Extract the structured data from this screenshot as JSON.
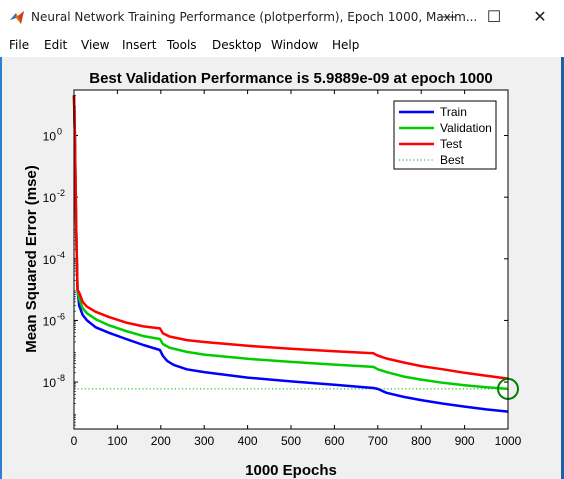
{
  "window": {
    "title": "Neural Network Training Performance (plotperform), Epoch 1000, Maxim...",
    "minimize_glyph": "—",
    "maximize_glyph": "☐",
    "close_glyph": "✕"
  },
  "menu": {
    "items": [
      "File",
      "Edit",
      "View",
      "Insert",
      "Tools",
      "Desktop",
      "Window",
      "Help"
    ],
    "dock_glyph": "↘"
  },
  "colors": {
    "train": "#0000ff",
    "validation": "#00cc00",
    "test": "#ff0000",
    "best": "#00aa00",
    "goal_circle": "#008000"
  },
  "chart_data": {
    "type": "line",
    "title": "Best Validation Performance is 5.9889e-09 at epoch 1000",
    "xlabel": "1000 Epochs",
    "ylabel": "Mean Squared Error  (mse)",
    "xlim": [
      0,
      1000
    ],
    "ylim": [
      3e-10,
      30
    ],
    "yscale": "log",
    "xticks": [
      0,
      100,
      200,
      300,
      400,
      500,
      600,
      700,
      800,
      900,
      1000
    ],
    "yticks": [
      {
        "value": 1,
        "base": "10",
        "exp": "0"
      },
      {
        "value": 0.01,
        "base": "10",
        "exp": "-2"
      },
      {
        "value": 0.0001,
        "base": "10",
        "exp": "-4"
      },
      {
        "value": 1e-06,
        "base": "10",
        "exp": "-6"
      },
      {
        "value": 1e-08,
        "base": "10",
        "exp": "-8"
      }
    ],
    "legend_position": "top-right",
    "series": [
      {
        "name": "Train",
        "key": "train",
        "style": "solid",
        "x": [
          0,
          1,
          2,
          3,
          5,
          8,
          12,
          20,
          30,
          50,
          80,
          120,
          160,
          198,
          205,
          215,
          230,
          260,
          300,
          400,
          500,
          600,
          690,
          700,
          720,
          760,
          800,
          850,
          900,
          950,
          1000
        ],
        "y": [
          20,
          5,
          1,
          0.1,
          0.001,
          1e-05,
          3e-06,
          1.5e-06,
          1e-06,
          6e-07,
          4e-07,
          2.5e-07,
          1.6e-07,
          1.1e-07,
          7e-08,
          4.8e-08,
          3.6e-08,
          2.6e-08,
          2.1e-08,
          1.4e-08,
          1.05e-08,
          8.2e-09,
          6.4e-09,
          6e-09,
          4.5e-09,
          3.3e-09,
          2.6e-09,
          2e-09,
          1.6e-09,
          1.3e-09,
          1.1e-09
        ]
      },
      {
        "name": "Validation",
        "key": "validation",
        "style": "solid",
        "x": [
          0,
          1,
          2,
          3,
          5,
          8,
          12,
          20,
          30,
          50,
          80,
          120,
          160,
          198,
          205,
          220,
          260,
          300,
          400,
          500,
          600,
          690,
          700,
          720,
          760,
          800,
          850,
          900,
          950,
          1000
        ],
        "y": [
          20,
          5,
          1,
          0.1,
          0.001,
          1e-05,
          5e-06,
          2.5e-06,
          1.7e-06,
          1.1e-06,
          7e-07,
          4.5e-07,
          3.1e-07,
          2.5e-07,
          1.7e-07,
          1.3e-07,
          9.5e-08,
          7.8e-08,
          5.7e-08,
          4.5e-08,
          3.7e-08,
          3.1e-08,
          2.6e-08,
          2.1e-08,
          1.5e-08,
          1.2e-08,
          9.5e-09,
          7.9e-09,
          6.8e-09,
          5.9889e-09
        ]
      },
      {
        "name": "Test",
        "key": "test",
        "style": "solid",
        "x": [
          0,
          1,
          2,
          3,
          5,
          8,
          12,
          20,
          30,
          50,
          80,
          120,
          160,
          198,
          205,
          220,
          260,
          300,
          400,
          500,
          600,
          690,
          700,
          720,
          760,
          800,
          850,
          900,
          950,
          1000
        ],
        "y": [
          20,
          5,
          1,
          0.1,
          0.001,
          1e-05,
          8e-06,
          4e-06,
          2.8e-06,
          1.9e-06,
          1.3e-06,
          8.5e-07,
          6.4e-07,
          5.5e-07,
          3.8e-07,
          3e-07,
          2.3e-07,
          2e-07,
          1.5e-07,
          1.2e-07,
          1e-07,
          8.6e-08,
          7.2e-08,
          5.8e-08,
          4.3e-08,
          3.3e-08,
          2.6e-08,
          2e-08,
          1.6e-08,
          1.3e-08
        ]
      },
      {
        "name": "Best",
        "key": "best",
        "style": "dotted"
      }
    ],
    "best": {
      "epoch": 1000,
      "value": 5.9889e-09
    }
  }
}
